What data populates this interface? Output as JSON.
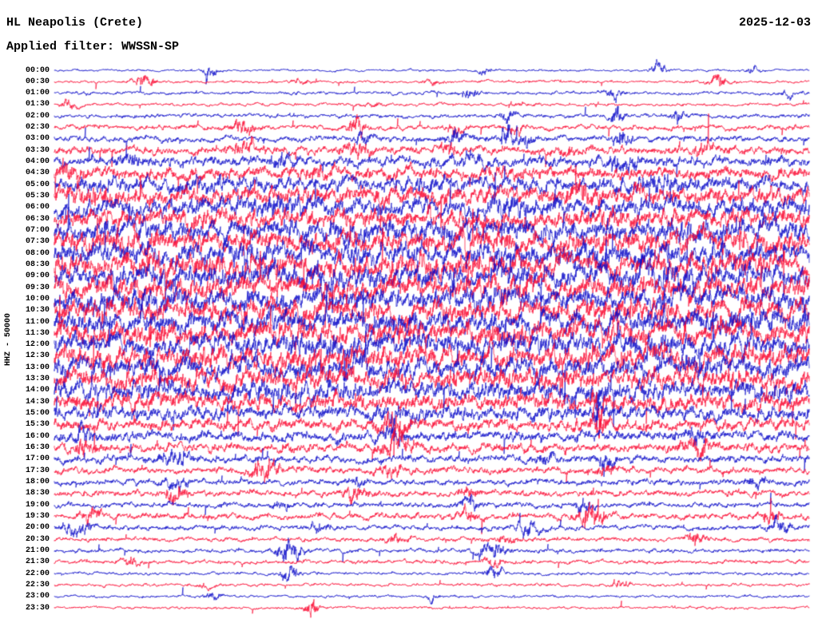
{
  "header": {
    "station": "HL Neapolis (Crete)",
    "date": "2025-12-03",
    "filter_label": "Applied filter: WWSSN-SP"
  },
  "left_axis": {
    "scale_label": "HHZ - 50000"
  },
  "chart_data": {
    "type": "seismogram-helicorder",
    "title": "HL Neapolis (Crete)",
    "date": "2025-12-03",
    "filter": "WWSSN-SP",
    "channel_scale_label": "HHZ - 50000",
    "row_interval_minutes": 30,
    "rows_per_day": 48,
    "palette": {
      "blue": "#0b0bc8",
      "red": "#fb0a32"
    },
    "rows": [
      {
        "t": "00:00",
        "color": "blue",
        "amp": 0.7,
        "bursts": [
          [
            0.205,
            0.008,
            5
          ],
          [
            0.57,
            0.012,
            1.5
          ],
          [
            0.8,
            0.01,
            4
          ],
          [
            0.925,
            0.008,
            2
          ]
        ]
      },
      {
        "t": "00:30",
        "color": "red",
        "amp": 0.8,
        "bursts": [
          [
            0.12,
            0.015,
            3.5
          ],
          [
            0.33,
            0.012,
            1.5
          ],
          [
            0.5,
            0.012,
            1.5
          ],
          [
            0.88,
            0.012,
            4
          ]
        ]
      },
      {
        "t": "01:00",
        "color": "blue",
        "amp": 1.0,
        "bursts": [
          [
            0.55,
            0.012,
            2.5
          ],
          [
            0.74,
            0.012,
            2.5
          ],
          [
            0.97,
            0.008,
            2
          ]
        ]
      },
      {
        "t": "01:30",
        "color": "red",
        "amp": 0.9,
        "bursts": [
          [
            0.02,
            0.012,
            3
          ],
          [
            0.42,
            0.012,
            1.5
          ],
          [
            0.62,
            0.015,
            1.5
          ]
        ]
      },
      {
        "t": "02:00",
        "color": "blue",
        "amp": 1.2,
        "bursts": [
          [
            0.6,
            0.01,
            3.5
          ],
          [
            0.745,
            0.008,
            6
          ],
          [
            0.825,
            0.008,
            4.5
          ]
        ]
      },
      {
        "t": "02:30",
        "color": "red",
        "amp": 1.5,
        "bursts": [
          [
            0.25,
            0.015,
            3.5
          ],
          [
            0.4,
            0.012,
            5.5
          ],
          [
            0.53,
            0.01,
            3.5
          ],
          [
            0.61,
            0.01,
            2.5
          ]
        ]
      },
      {
        "t": "03:00",
        "color": "blue",
        "amp": 1.8,
        "bursts": [
          [
            0.41,
            0.012,
            3.5
          ],
          [
            0.53,
            0.01,
            5
          ],
          [
            0.6,
            0.01,
            7
          ],
          [
            0.625,
            0.008,
            5
          ],
          [
            0.75,
            0.01,
            6.5
          ]
        ]
      },
      {
        "t": "03:30",
        "color": "red",
        "amp": 2.4,
        "bursts": [
          [
            0.25,
            0.02,
            3.5
          ],
          [
            0.4,
            0.015,
            4.5
          ],
          [
            0.52,
            0.012,
            3.5
          ],
          [
            0.68,
            0.012,
            2.5
          ],
          [
            0.86,
            0.015,
            3.5
          ]
        ]
      },
      {
        "t": "04:00",
        "color": "blue",
        "amp": 3.0,
        "bursts": [
          [
            0.1,
            0.02,
            2.5
          ],
          [
            0.3,
            0.02,
            2.5
          ],
          [
            0.55,
            0.02,
            2.5
          ],
          [
            0.75,
            0.02,
            3.5
          ]
        ]
      },
      {
        "t": "04:30",
        "color": "red",
        "amp": 3.6,
        "bursts": [
          [
            0.02,
            0.02,
            3.5
          ],
          [
            0.35,
            0.02,
            2.5
          ],
          [
            0.6,
            0.02,
            2.5
          ]
        ]
      },
      {
        "t": "05:00",
        "color": "blue",
        "amp": 4.2,
        "bursts": [
          [
            0.2,
            0.03,
            2.5
          ],
          [
            0.5,
            0.03,
            2
          ],
          [
            0.8,
            0.03,
            2.5
          ]
        ]
      },
      {
        "t": "05:30",
        "color": "red",
        "amp": 5.0,
        "bursts": [
          [
            0.05,
            0.03,
            2.5
          ],
          [
            0.45,
            0.03,
            2
          ],
          [
            0.7,
            0.03,
            2.5
          ]
        ]
      },
      {
        "t": "06:00",
        "color": "blue",
        "amp": 5.2,
        "bursts": [
          [
            0.3,
            0.03,
            2
          ],
          [
            0.6,
            0.03,
            2.5
          ]
        ]
      },
      {
        "t": "06:30",
        "color": "red",
        "amp": 5.5,
        "bursts": [
          [
            0.2,
            0.03,
            2
          ],
          [
            0.75,
            0.03,
            2
          ]
        ]
      },
      {
        "t": "07:00",
        "color": "blue",
        "amp": 6.0,
        "bursts": [
          [
            0.4,
            0.04,
            2
          ],
          [
            0.85,
            0.03,
            2
          ]
        ]
      },
      {
        "t": "07:30",
        "color": "red",
        "amp": 6.2,
        "bursts": [
          [
            0.1,
            0.03,
            2
          ],
          [
            0.55,
            0.04,
            2
          ]
        ]
      },
      {
        "t": "08:00",
        "color": "blue",
        "amp": 6.3,
        "bursts": [
          [
            0.25,
            0.04,
            2
          ],
          [
            0.7,
            0.04,
            2
          ]
        ]
      },
      {
        "t": "08:30",
        "color": "red",
        "amp": 6.8,
        "bursts": [
          [
            0.15,
            0.04,
            2
          ],
          [
            0.5,
            0.04,
            2
          ],
          [
            0.9,
            0.03,
            2
          ]
        ]
      },
      {
        "t": "09:00",
        "color": "blue",
        "amp": 6.5,
        "bursts": [
          [
            0.35,
            0.04,
            1.5
          ],
          [
            0.8,
            0.03,
            1.5
          ]
        ]
      },
      {
        "t": "09:30",
        "color": "red",
        "amp": 6.5,
        "bursts": [
          [
            0.2,
            0.04,
            1.5
          ],
          [
            0.6,
            0.04,
            1.5
          ]
        ]
      },
      {
        "t": "10:00",
        "color": "blue",
        "amp": 6.5,
        "bursts": [
          [
            0.1,
            0.04,
            1.5
          ],
          [
            0.55,
            0.04,
            1.5
          ]
        ]
      },
      {
        "t": "10:30",
        "color": "red",
        "amp": 6.6,
        "bursts": [
          [
            0.3,
            0.04,
            1.5
          ],
          [
            0.75,
            0.04,
            1.5
          ]
        ]
      },
      {
        "t": "11:00",
        "color": "blue",
        "amp": 6.5,
        "bursts": [
          [
            0.45,
            0.04,
            1.5
          ],
          [
            0.9,
            0.03,
            1.5
          ]
        ]
      },
      {
        "t": "11:30",
        "color": "red",
        "amp": 6.6,
        "bursts": [
          [
            0.15,
            0.04,
            1.5
          ],
          [
            0.6,
            0.04,
            1.5
          ]
        ]
      },
      {
        "t": "12:00",
        "color": "blue",
        "amp": 6.4,
        "bursts": [
          [
            0.35,
            0.04,
            1.5
          ],
          [
            0.8,
            0.04,
            1.5
          ]
        ]
      },
      {
        "t": "12:30",
        "color": "red",
        "amp": 6.4,
        "bursts": [
          [
            0.25,
            0.04,
            1.5
          ],
          [
            0.7,
            0.04,
            1.5
          ]
        ]
      },
      {
        "t": "13:00",
        "color": "blue",
        "amp": 6.0,
        "bursts": [
          [
            0.4,
            0.04,
            1.5
          ],
          [
            0.85,
            0.03,
            1.5
          ]
        ]
      },
      {
        "t": "13:30",
        "color": "red",
        "amp": 5.8,
        "bursts": [
          [
            0.2,
            0.04,
            1.5
          ],
          [
            0.6,
            0.04,
            1.5
          ]
        ]
      },
      {
        "t": "14:00",
        "color": "blue",
        "amp": 5.4,
        "bursts": [
          [
            0.72,
            0.008,
            5
          ],
          [
            0.3,
            0.04,
            1.5
          ]
        ]
      },
      {
        "t": "14:30",
        "color": "red",
        "amp": 4.8,
        "bursts": [
          [
            0.72,
            0.008,
            8
          ],
          [
            0.15,
            0.03,
            1.5
          ]
        ]
      },
      {
        "t": "15:00",
        "color": "blue",
        "amp": 4.0,
        "bursts": [
          [
            0.45,
            0.02,
            3.5
          ],
          [
            0.72,
            0.01,
            5.5
          ]
        ]
      },
      {
        "t": "15:30",
        "color": "red",
        "amp": 3.4,
        "bursts": [
          [
            0.45,
            0.02,
            5.5
          ],
          [
            0.72,
            0.012,
            6.5
          ]
        ]
      },
      {
        "t": "16:00",
        "color": "blue",
        "amp": 3.0,
        "bursts": [
          [
            0.04,
            0.015,
            3.5
          ],
          [
            0.45,
            0.015,
            3.5
          ],
          [
            0.85,
            0.015,
            3.5
          ]
        ]
      },
      {
        "t": "16:30",
        "color": "red",
        "amp": 2.6,
        "bursts": [
          [
            0.04,
            0.015,
            4.5
          ],
          [
            0.45,
            0.02,
            5.5
          ],
          [
            0.85,
            0.02,
            4.5
          ]
        ]
      },
      {
        "t": "17:00",
        "color": "blue",
        "amp": 2.2,
        "bursts": [
          [
            0.16,
            0.02,
            4.5
          ],
          [
            0.65,
            0.012,
            3.5
          ],
          [
            0.73,
            0.012,
            5.5
          ]
        ]
      },
      {
        "t": "17:30",
        "color": "red",
        "amp": 2.0,
        "bursts": [
          [
            0.28,
            0.02,
            5.5
          ],
          [
            0.45,
            0.015,
            3.5
          ],
          [
            0.73,
            0.012,
            3.5
          ]
        ]
      },
      {
        "t": "18:00",
        "color": "blue",
        "amp": 1.8,
        "bursts": [
          [
            0.16,
            0.015,
            3.5
          ],
          [
            0.4,
            0.012,
            2.5
          ],
          [
            0.93,
            0.012,
            2.5
          ]
        ]
      },
      {
        "t": "18:30",
        "color": "red",
        "amp": 1.8,
        "bursts": [
          [
            0.16,
            0.015,
            4.5
          ],
          [
            0.4,
            0.015,
            4.5
          ],
          [
            0.55,
            0.012,
            2.5
          ]
        ]
      },
      {
        "t": "19:00",
        "color": "blue",
        "amp": 1.6,
        "bursts": [
          [
            0.3,
            0.012,
            2.5
          ],
          [
            0.55,
            0.012,
            3.5
          ],
          [
            0.7,
            0.012,
            3.5
          ]
        ]
      },
      {
        "t": "19:30",
        "color": "red",
        "amp": 1.8,
        "bursts": [
          [
            0.05,
            0.015,
            3.5
          ],
          [
            0.55,
            0.012,
            3.5
          ],
          [
            0.71,
            0.015,
            7.5
          ],
          [
            0.95,
            0.012,
            4.5
          ]
        ]
      },
      {
        "t": "20:00",
        "color": "blue",
        "amp": 1.5,
        "bursts": [
          [
            0.03,
            0.02,
            4.5
          ],
          [
            0.35,
            0.012,
            2.5
          ],
          [
            0.63,
            0.015,
            4.5
          ],
          [
            0.96,
            0.015,
            4.5
          ]
        ]
      },
      {
        "t": "20:30",
        "color": "red",
        "amp": 1.3,
        "bursts": [
          [
            0.45,
            0.012,
            2.5
          ],
          [
            0.6,
            0.012,
            2.5
          ],
          [
            0.85,
            0.012,
            4.5
          ]
        ]
      },
      {
        "t": "21:00",
        "color": "blue",
        "amp": 1.2,
        "bursts": [
          [
            0.31,
            0.015,
            6.5
          ],
          [
            0.58,
            0.02,
            4.5
          ]
        ]
      },
      {
        "t": "21:30",
        "color": "red",
        "amp": 1.2,
        "bursts": [
          [
            0.1,
            0.012,
            2.5
          ],
          [
            0.58,
            0.012,
            2.5
          ]
        ]
      },
      {
        "t": "22:00",
        "color": "blue",
        "amp": 0.9,
        "bursts": [
          [
            0.31,
            0.012,
            5.5
          ],
          [
            0.58,
            0.012,
            3.5
          ]
        ]
      },
      {
        "t": "22:30",
        "color": "red",
        "amp": 0.9,
        "bursts": [
          [
            0.2,
            0.012,
            1.5
          ],
          [
            0.75,
            0.012,
            1.5
          ]
        ]
      },
      {
        "t": "23:00",
        "color": "blue",
        "amp": 0.8,
        "bursts": [
          [
            0.21,
            0.012,
            2.5
          ],
          [
            0.5,
            0.01,
            1.5
          ]
        ]
      },
      {
        "t": "23:30",
        "color": "red",
        "amp": 0.8,
        "bursts": [
          [
            0.34,
            0.008,
            9
          ]
        ]
      }
    ]
  }
}
